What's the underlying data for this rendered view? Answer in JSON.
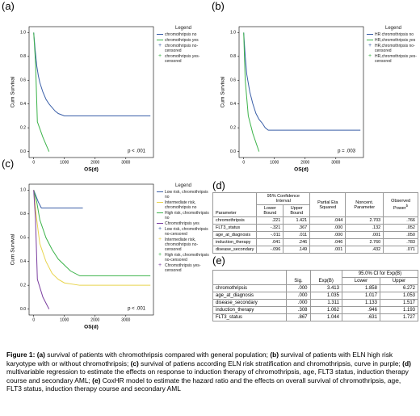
{
  "chart_data": [
    {
      "type": "line",
      "label": "(a)",
      "ylabel": "Cum Survival",
      "xlabel": "OS(d)",
      "annotation": "p < .001",
      "xlim": [
        -150,
        3900
      ],
      "ylim": [
        -0.05,
        1.05
      ],
      "xticks": [
        0,
        1000,
        2000,
        3000
      ],
      "yticks": [
        {
          "value": 0,
          "label": "0.0"
        },
        {
          "value": 0.2,
          "label": "0.2"
        },
        {
          "value": 0.4,
          "label": "0.4"
        },
        {
          "value": 0.6,
          "label": "0.6"
        },
        {
          "value": 0.8,
          "label": "0.8"
        },
        {
          "value": 1,
          "label": "1.0"
        }
      ],
      "legend_title": "Legend",
      "series": [
        {
          "name": "chromothripsis no",
          "color": "#3a5fa8",
          "x": [
            0,
            50,
            100,
            150,
            200,
            300,
            400,
            500,
            600,
            700,
            800,
            900,
            1000,
            1200,
            3800
          ],
          "values": [
            1,
            0.85,
            0.72,
            0.64,
            0.58,
            0.5,
            0.44,
            0.4,
            0.37,
            0.34,
            0.32,
            0.31,
            0.3,
            0.3,
            0.3
          ]
        },
        {
          "name": "chromothripsis yes",
          "color": "#3cb34a",
          "x": [
            0,
            60,
            120,
            300,
            500
          ],
          "values": [
            1,
            0.75,
            0.25,
            0.12,
            0
          ]
        }
      ],
      "censored": [
        "chromothripsis no-censored",
        "chromothripsis yes-censored"
      ]
    },
    {
      "type": "line",
      "label": "(b)",
      "ylabel": "Cum Survival",
      "xlabel": "OS(d)",
      "annotation": "p = .003",
      "xlim": [
        -150,
        3900
      ],
      "ylim": [
        -0.05,
        1.05
      ],
      "xticks": [
        0,
        1000,
        2000,
        3000
      ],
      "yticks": [
        {
          "value": 0,
          "label": "0.0"
        },
        {
          "value": 0.2,
          "label": "0.2"
        },
        {
          "value": 0.4,
          "label": "0.4"
        },
        {
          "value": 0.6,
          "label": "0.6"
        },
        {
          "value": 0.8,
          "label": "0.8"
        },
        {
          "value": 1,
          "label": "1.0"
        }
      ],
      "legend_title": "Legend",
      "series": [
        {
          "name": "HR chromothripsis no",
          "color": "#3a5fa8",
          "x": [
            0,
            50,
            100,
            200,
            300,
            400,
            500,
            600,
            700,
            800,
            1000,
            3800
          ],
          "values": [
            1,
            0.8,
            0.65,
            0.5,
            0.4,
            0.32,
            0.27,
            0.24,
            0.2,
            0.18,
            0.18,
            0.18
          ]
        },
        {
          "name": "HR,chromothripsis yes",
          "color": "#3cb34a",
          "x": [
            0,
            50,
            150,
            300,
            500
          ],
          "values": [
            1,
            0.6,
            0.3,
            0.15,
            0
          ]
        }
      ],
      "censored": [
        "HR,chromothripsis no-censored",
        "HR,chromothripsis yes-censored"
      ]
    },
    {
      "type": "line",
      "label": "(c)",
      "ylabel": "Cum Survival",
      "xlabel": "OS(d)",
      "annotation": "p < .001",
      "xlim": [
        -150,
        3900
      ],
      "ylim": [
        -0.05,
        1.05
      ],
      "xticks": [
        0,
        1000,
        2000,
        3000
      ],
      "yticks": [
        {
          "value": 0,
          "label": "0.0"
        },
        {
          "value": 0.2,
          "label": "0.2"
        },
        {
          "value": 0.4,
          "label": "0.4"
        },
        {
          "value": 0.6,
          "label": "0.6"
        },
        {
          "value": 0.8,
          "label": "0.8"
        },
        {
          "value": 1,
          "label": "1.0"
        }
      ],
      "legend_title": "Legend",
      "series": [
        {
          "name": "Low risk, chromothripsis no",
          "color": "#3a5fa8",
          "x": [
            0,
            150,
            250,
            1600
          ],
          "values": [
            1,
            0.9,
            0.85,
            0.85
          ]
        },
        {
          "name": "Intermediate risk, chromothripsis no",
          "color": "#e8d44d",
          "x": [
            0,
            100,
            200,
            400,
            600,
            800,
            1000,
            1500,
            3800
          ],
          "values": [
            1,
            0.75,
            0.55,
            0.4,
            0.3,
            0.25,
            0.22,
            0.2,
            0.2
          ]
        },
        {
          "name": "High risk, chromothripsis no",
          "color": "#3cb34a",
          "x": [
            0,
            100,
            200,
            400,
            600,
            800,
            1000,
            1200,
            1500,
            3800
          ],
          "values": [
            1,
            0.9,
            0.75,
            0.6,
            0.5,
            0.42,
            0.37,
            0.32,
            0.28,
            0.28
          ]
        },
        {
          "name": "Chromothripsis yes",
          "color": "#7b3fa0",
          "x": [
            0,
            60,
            120,
            300,
            500
          ],
          "values": [
            1,
            0.75,
            0.25,
            0.1,
            0
          ]
        }
      ],
      "censored": [
        "Low risk, chromothripsis no-censored",
        "Intermediate risk, chromothripsis no-censored",
        "High risk, chromothripsis no-censored",
        "Chromothripsis yes-censored"
      ]
    }
  ],
  "table_d": {
    "label": "(d)",
    "head": {
      "parameter": "Parameter",
      "ci": "95% Confidence Interval",
      "lower": "Lower Bound",
      "upper": "Upper Bound",
      "eta": "Partial Eta Squared",
      "noncent": "Noncent. Parameter",
      "power": "Observed Power",
      "power_note": "b"
    },
    "rows": [
      [
        "chromothripsis",
        ".221",
        "1.421",
        ".044",
        "2.703",
        ".766"
      ],
      [
        "FLT3_status",
        "-.321",
        ".367",
        ".000",
        ".132",
        ".052"
      ],
      [
        "age_at_diagnosis",
        "-.011",
        ".011",
        ".000",
        ".001",
        ".050"
      ],
      [
        "induction_therapy",
        ".041",
        ".246",
        ".046",
        "2.760",
        ".783"
      ],
      [
        "disease_secondary",
        "-.096",
        ".149",
        ".001",
        ".432",
        ".071"
      ]
    ]
  },
  "table_e": {
    "label": "(e)",
    "head": {
      "sig": "Sig.",
      "exp": "Exp(B)",
      "ci": "95.0% CI for Exp(B)",
      "lower": "Lower",
      "upper": "Upper"
    },
    "rows": [
      [
        "chromothripsis",
        ".000",
        "3.413",
        "1.858",
        "6.272"
      ],
      [
        "age_at_diagnosis",
        ".000",
        "1.035",
        "1.017",
        "1.053"
      ],
      [
        "disease_secondary",
        ".000",
        "1.311",
        "1.133",
        "1.517"
      ],
      [
        "induction_therapy",
        ".308",
        "1.062",
        ".946",
        "1.193"
      ],
      [
        "FLT3_status",
        ".867",
        "1.044",
        ".631",
        "1.727"
      ]
    ]
  },
  "caption": [
    {
      "text": "Figure 1: ",
      "bold": true
    },
    {
      "text": "(a)",
      "bold": true
    },
    {
      "text": " survival of patients with chromothripsis compared with general population; ",
      "bold": false
    },
    {
      "text": "(b)",
      "bold": true
    },
    {
      "text": " survival of patients with ELN high risk karyotype with or without chromothripsis; ",
      "bold": false
    },
    {
      "text": "(c)",
      "bold": true
    },
    {
      "text": " survival of patiens according ELN risk stratification and chromothripsis, curve in purple; ",
      "bold": false
    },
    {
      "text": "(d)",
      "bold": true
    },
    {
      "text": " multivariable regression to estimate the effects on response to induction therapy of chromothripsis, age, FLT3 status, induction therapy course and secondary AML; ",
      "bold": false
    },
    {
      "text": "(e)",
      "bold": true
    },
    {
      "text": " CoxHR model to estimate the hazard ratio and the effects on overall survival of chromothripsis, age, FLT3 status, induction therapy course and secondary AML",
      "bold": false
    }
  ]
}
